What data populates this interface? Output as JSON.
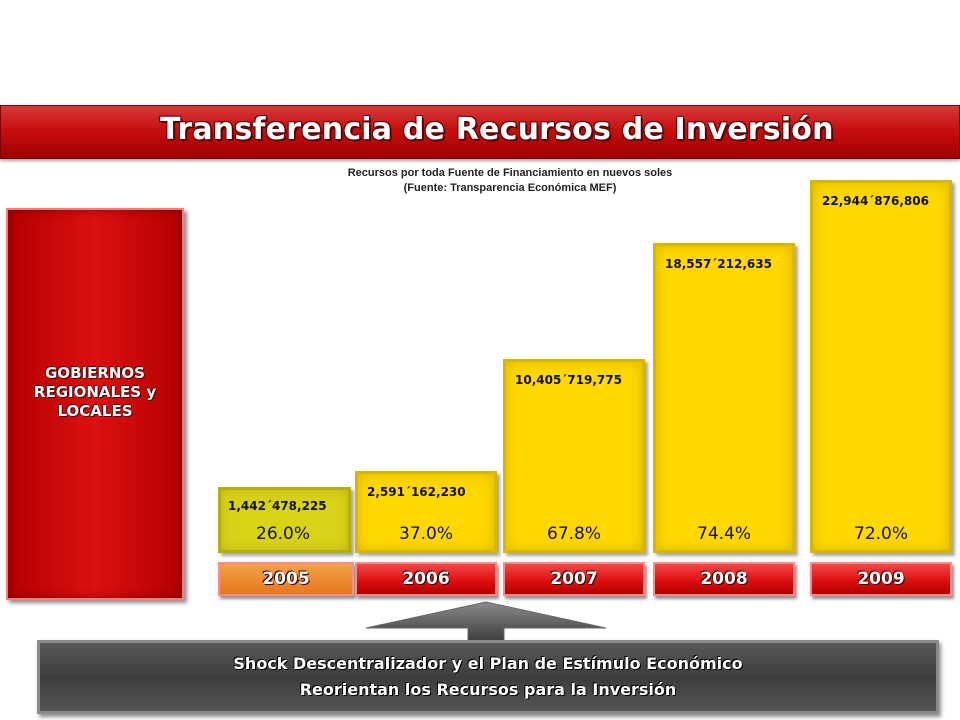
{
  "slide": {
    "title": "Transferencia de Recursos de Inversión",
    "subtitle_line1": "Recursos por toda Fuente de Financiamiento  en nuevos soles",
    "subtitle_line2": "(Fuente: Transparencia  Económica MEF)",
    "side_label_line1": "GOBIERNOS",
    "side_label_line2": "REGIONALES y",
    "side_label_line3": "LOCALES",
    "banner_line1": "Shock Descentralizador y el Plan de Estímulo Económico",
    "banner_line2": "Reorientan los Recursos para la Inversión"
  },
  "colors": {
    "title_red": "#c80f0f",
    "bar_yellow": "#ffd800",
    "bar_2005": "#d9d318",
    "year_red": "#e01010",
    "year_orange": "#e8781c",
    "banner_gray": "#4a4a4a"
  },
  "chart_data": {
    "type": "bar",
    "categories": [
      "2005",
      "2006",
      "2007",
      "2008",
      "2009"
    ],
    "values": [
      1442478225,
      2591162230,
      10405719775,
      18557212635,
      22944876806
    ],
    "value_labels": [
      "1,442´478,225",
      "2,591´162,230",
      "10,405´719,775",
      "18,557´212,635",
      "22,944´876,806"
    ],
    "percent_labels": [
      "26.0%",
      "37.0%",
      "67.8%",
      "74.4%",
      "72.0%"
    ],
    "percents": [
      26.0,
      37.0,
      67.8,
      74.4,
      72.0
    ],
    "title": "Transferencia de Recursos de Inversión",
    "xlabel": "",
    "ylabel": "",
    "grid": false
  }
}
